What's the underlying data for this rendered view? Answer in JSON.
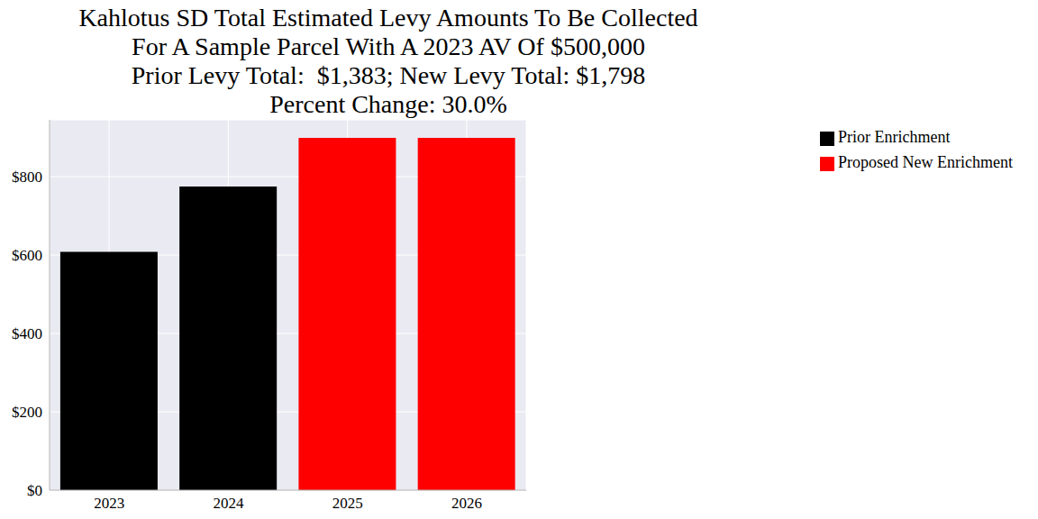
{
  "chart_data": {
    "type": "bar",
    "title": "Kahlotus SD Total Estimated Levy Amounts To Be Collected\nFor A Sample Parcel With A 2023 AV Of $500,000\nPrior Levy Total:  $1,383; New Levy Total: $1,798\nPercent Change: 30.0%",
    "categories": [
      "2023",
      "2024",
      "2025",
      "2026"
    ],
    "series": [
      {
        "name": "Prior Enrichment",
        "color": "#000000",
        "values": [
          608,
          775,
          null,
          null
        ]
      },
      {
        "name": "Proposed New Enrichment",
        "color": "#ff0000",
        "values": [
          null,
          null,
          899,
          899
        ]
      }
    ],
    "stacked": true,
    "ylim": [
      0,
      945
    ],
    "yticks": [
      {
        "value": 0,
        "label": "$0"
      },
      {
        "value": 200,
        "label": "$200"
      },
      {
        "value": 400,
        "label": "$400"
      },
      {
        "value": 600,
        "label": "$600"
      },
      {
        "value": 800,
        "label": "$800"
      }
    ],
    "grid": true,
    "legend": "upper right"
  }
}
